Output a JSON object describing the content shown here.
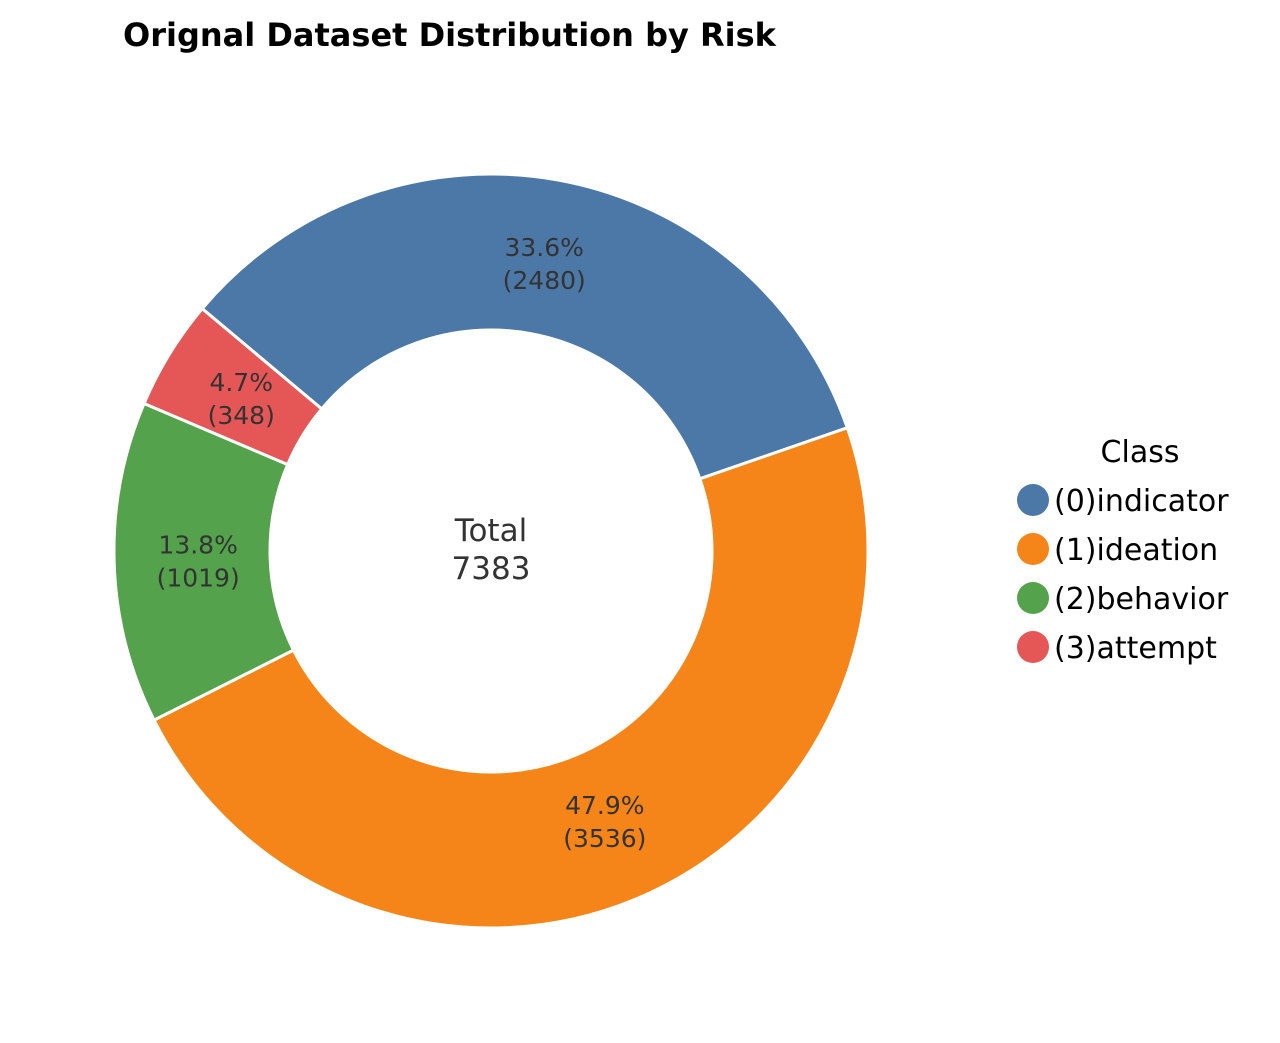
{
  "chart_data": {
    "type": "pie",
    "variant": "donut",
    "title": "Orignal Dataset Distribution by Risk",
    "center_text": [
      "Total",
      "7383"
    ],
    "total": 7383,
    "slices": [
      {
        "label": "(0)indicator",
        "value": 2480,
        "percent_label": "33.6%",
        "count_label": "(2480)",
        "color": "#4c78a8"
      },
      {
        "label": "(1)ideation",
        "value": 3536,
        "percent_label": "47.9%",
        "count_label": "(3536)",
        "color": "#f58518"
      },
      {
        "label": "(2)behavior",
        "value": 1019,
        "percent_label": "13.8%",
        "count_label": "(1019)",
        "color": "#54a24b"
      },
      {
        "label": "(3)attempt",
        "value": 348,
        "percent_label": "4.7%",
        "count_label": "(348)",
        "color": "#e45756"
      }
    ],
    "legend": {
      "title": "Class",
      "placement": "right"
    },
    "start_angle_deg": 140,
    "direction": "clockwise"
  }
}
